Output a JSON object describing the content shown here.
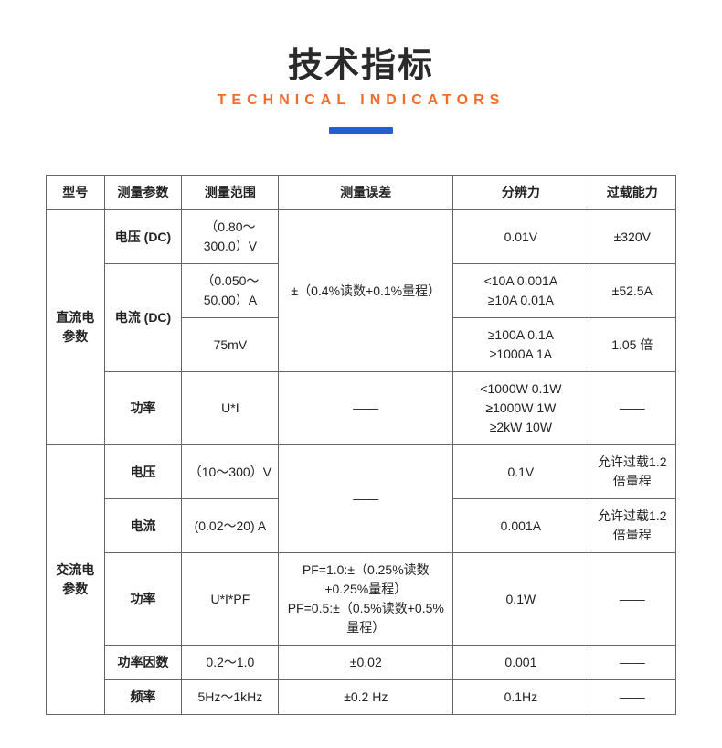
{
  "header": {
    "title_cn": "技术指标",
    "title_en": "TECHNICAL INDICATORS"
  },
  "colors": {
    "title_cn": "#2a2a2a",
    "title_en": "#f26b2a",
    "bar": "#2060d0",
    "border": "#666666",
    "text": "#222222",
    "background": "#ffffff"
  },
  "table": {
    "columns": [
      "型号",
      "测量参数",
      "测量范围",
      "测量误差",
      "分辨力",
      "过载能力"
    ],
    "sections": [
      {
        "model": "直流电参数",
        "rows": [
          {
            "param": "电压 (DC)",
            "range": "（0.80～300.0）V",
            "error_merge": "±（0.4%读数+0.1%量程）",
            "resolution": "0.01V",
            "overload": "±320V"
          },
          {
            "param": "电流 (DC)",
            "range_a": "（0.050～50.00）A",
            "range_b": "75mV",
            "resolution_a": "<10A 0.001A\n≥10A 0.01A",
            "resolution_b": "≥100A 0.1A\n≥1000A   1A",
            "overload_a": "±52.5A",
            "overload_b": "1.05 倍"
          },
          {
            "param": "功率",
            "range": "U*I",
            "error": "——",
            "resolution": "<1000W   0.1W\n≥1000W   1W\n≥2kW       10W",
            "overload": "——"
          }
        ]
      },
      {
        "model": "交流电参数",
        "rows": [
          {
            "param": "电压",
            "range": "（10～300）V",
            "error_merge": "——",
            "resolution": "0.1V",
            "overload": "允许过载1.2 倍量程"
          },
          {
            "param": "电流",
            "range": "(0.02～20) A",
            "resolution": "0.001A",
            "overload": "允许过载1.2 倍量程"
          },
          {
            "param": "功率",
            "range": "U*I*PF",
            "error": "PF=1.0:±（0.25%读数+0.25%量程）\nPF=0.5:±（0.5%读数+0.5%量程）",
            "resolution": "0.1W",
            "overload": "——"
          },
          {
            "param": "功率因数",
            "range": "0.2～1.0",
            "error": "±0.02",
            "resolution": "0.001",
            "overload": "——"
          },
          {
            "param": "频率",
            "range": "5Hz～1kHz",
            "error": "±0.2 Hz",
            "resolution": "0.1Hz",
            "overload": "——"
          }
        ]
      }
    ]
  }
}
